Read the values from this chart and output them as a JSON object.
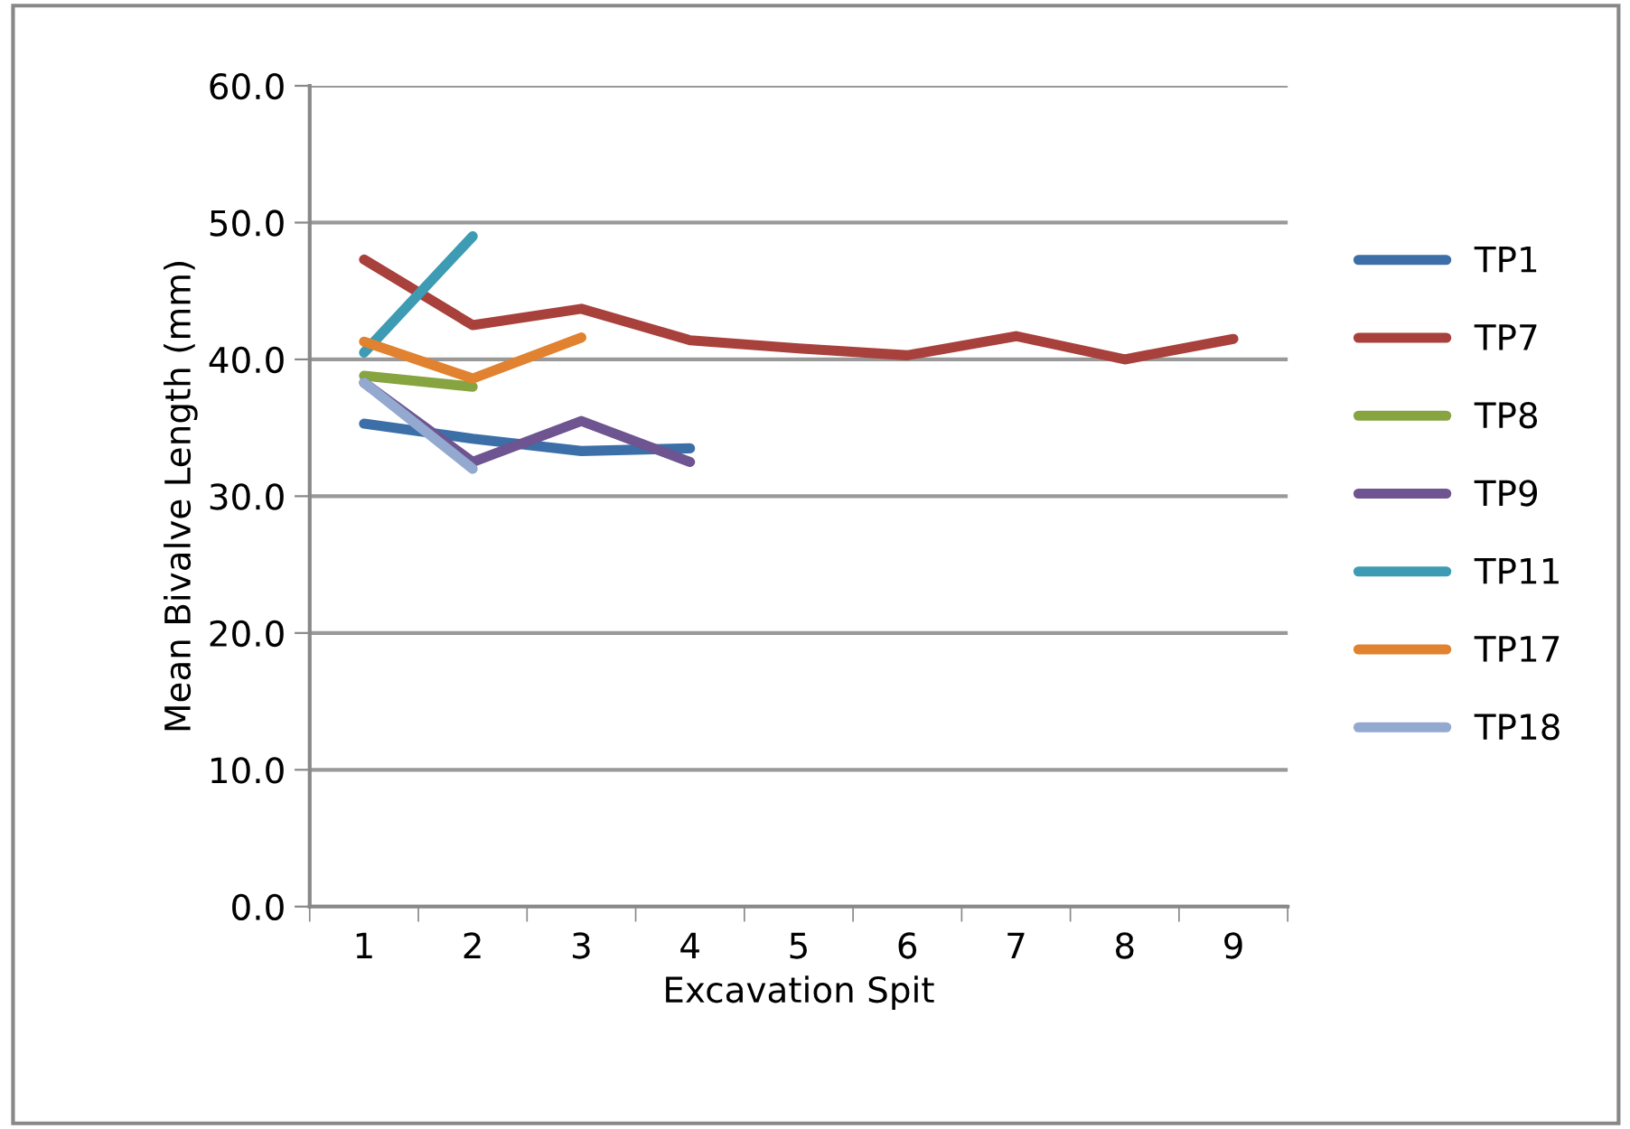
{
  "chart_data": {
    "type": "line",
    "xlabel": "Excavation Spit",
    "ylabel": "Mean Bivalve Length (mm)",
    "categories": [
      "1",
      "2",
      "3",
      "4",
      "5",
      "6",
      "7",
      "8",
      "9"
    ],
    "ylim": [
      0,
      60
    ],
    "yticks": [
      {
        "value": 0,
        "label": "0.0"
      },
      {
        "value": 10,
        "label": "10.0"
      },
      {
        "value": 20,
        "label": "20.0"
      },
      {
        "value": 30,
        "label": "30.0"
      },
      {
        "value": 40,
        "label": "40.0"
      },
      {
        "value": 50,
        "label": "50.0"
      },
      {
        "value": 60,
        "label": "60.0"
      }
    ],
    "grid": "y",
    "legend": "right",
    "marker": "none",
    "line_style": "solid",
    "series": [
      {
        "name": "TP1",
        "color": "#3c6fa8",
        "values": [
          35.3,
          34.2,
          33.3,
          33.5,
          null,
          null,
          null,
          null,
          null
        ]
      },
      {
        "name": "TP7",
        "color": "#a8403c",
        "values": [
          47.3,
          42.5,
          43.7,
          41.4,
          40.8,
          40.3,
          41.7,
          40.0,
          41.5
        ]
      },
      {
        "name": "TP8",
        "color": "#86a43f",
        "values": [
          38.8,
          38.0,
          null,
          null,
          null,
          null,
          null,
          null,
          null
        ]
      },
      {
        "name": "TP9",
        "color": "#6e5490",
        "values": [
          38.3,
          32.5,
          35.5,
          32.5,
          null,
          null,
          null,
          null,
          null
        ]
      },
      {
        "name": "TP11",
        "color": "#3d9bb3",
        "values": [
          40.5,
          49.0,
          null,
          null,
          null,
          null,
          null,
          null,
          null
        ]
      },
      {
        "name": "TP17",
        "color": "#e0822f",
        "values": [
          41.3,
          38.6,
          41.6,
          null,
          null,
          null,
          null,
          null,
          null
        ]
      },
      {
        "name": "TP18",
        "color": "#93a9d0",
        "values": [
          38.3,
          32.0,
          null,
          null,
          null,
          null,
          null,
          null,
          null
        ]
      }
    ]
  }
}
